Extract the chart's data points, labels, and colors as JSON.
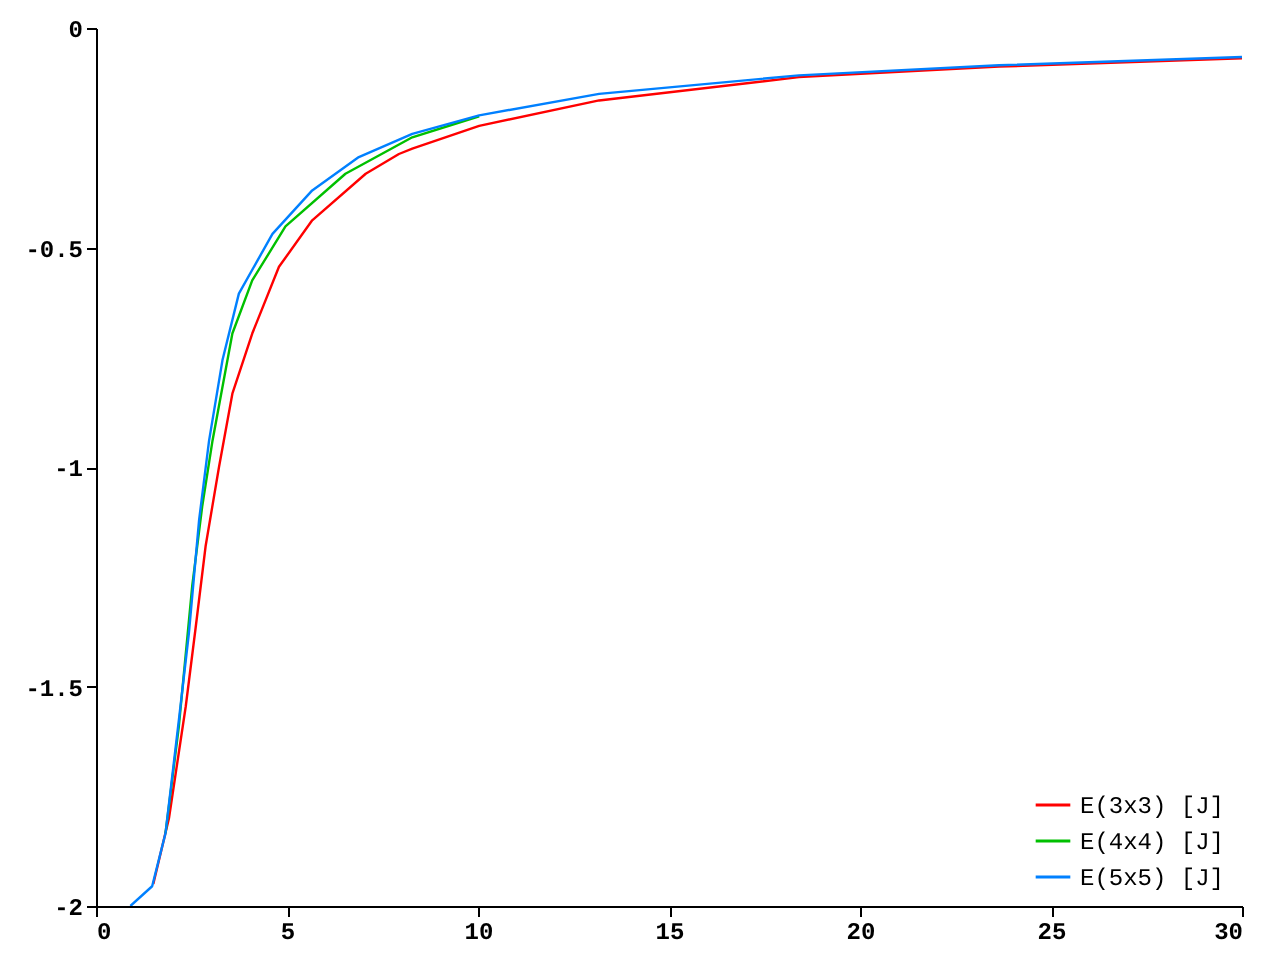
{
  "chart_data": {
    "type": "line",
    "xlim": [
      0,
      30
    ],
    "ylim": [
      -2,
      0
    ],
    "xticks": [
      0,
      5,
      10,
      15,
      20,
      25,
      30
    ],
    "yticks": [
      -2,
      -1.5,
      -1,
      -0.5,
      0
    ],
    "grid": false,
    "legend": "bottom right",
    "marker": "none",
    "line_style": "solid",
    "series": [
      {
        "name": "E(3x3) [J]",
        "color": "#ff0000",
        "x": [
          1.5,
          1.91,
          2.35,
          2.61,
          2.87,
          3.22,
          3.57,
          4.09,
          4.79,
          5.66,
          7.06,
          7.93,
          8.28,
          10.03,
          13.17,
          18.4,
          23.64,
          30
        ],
        "values": [
          -1.95,
          -1.8,
          -1.545,
          -1.365,
          -1.18,
          -1.0,
          -0.833,
          -0.696,
          -0.544,
          -0.438,
          -0.332,
          -0.287,
          -0.275,
          -0.223,
          -0.165,
          -0.112,
          -0.088,
          -0.069
        ]
      },
      {
        "name": "E(4x4) [J]",
        "color": "#00c000",
        "x": [
          1.82,
          2.17,
          2.52,
          2.78,
          3.05,
          3.57,
          4.09,
          4.96,
          6.53,
          8.28,
          10.03
        ],
        "values": [
          -1.834,
          -1.59,
          -1.27,
          -1.09,
          -0.94,
          -0.696,
          -0.575,
          -0.452,
          -0.332,
          -0.249,
          -0.201
        ]
      },
      {
        "name": "E(5x5) [J]",
        "color": "#0080ff",
        "x": [
          0.9,
          1.47,
          1.82,
          2.17,
          2.43,
          2.7,
          2.96,
          3.31,
          3.74,
          4.62,
          5.66,
          6.88,
          8.28,
          10.03,
          13.17,
          18.4,
          23.64,
          30
        ],
        "values": [
          -2,
          -1.955,
          -1.834,
          -1.576,
          -1.38,
          -1.12,
          -0.94,
          -0.757,
          -0.605,
          -0.469,
          -0.37,
          -0.294,
          -0.241,
          -0.199,
          -0.15,
          -0.108,
          -0.085,
          -0.066
        ]
      }
    ]
  }
}
